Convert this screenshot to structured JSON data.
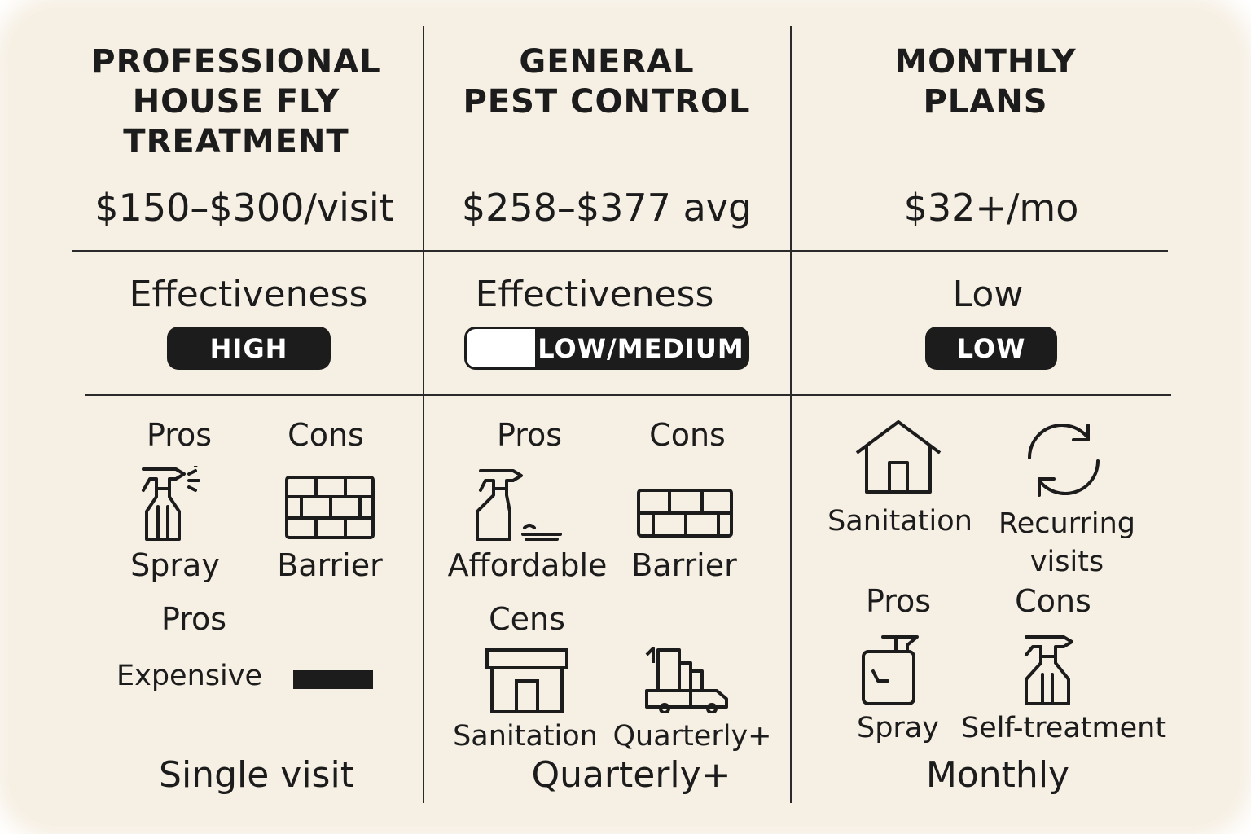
{
  "columns": [
    {
      "heading_lines": [
        "PROFESSIONAL",
        "HOUSE FLY",
        "TREATMENT"
      ],
      "price": "$150–$300/visit",
      "effectiveness_label": "Effectiveness",
      "effectiveness_badge": "HIGH",
      "pros_label": "Pros",
      "cons_label": "Cons",
      "pro_item": "Spray",
      "con_item": "Barrier",
      "pros_label_2": "Pros",
      "extra_item": "Expensive",
      "frequency": "Single visit"
    },
    {
      "heading_lines": [
        "GENERAL",
        "PEST CONTROL"
      ],
      "price": "$258–$377 avg",
      "effectiveness_label": "Effectiveness",
      "effectiveness_badge": "LOW/MEDIUM",
      "pros_label": "Pros",
      "cons_label": "Cons",
      "pro_item": "Affordable",
      "con_item": "Barrier",
      "cons_label_2": "Cens",
      "item_3": "Sanitation",
      "item_4": "Quarterly+",
      "frequency": "Quarterly+"
    },
    {
      "heading_lines": [
        "MONTHLY",
        "PLANS"
      ],
      "price": "$32+/mo",
      "effectiveness_label": "Low",
      "effectiveness_badge": "LOW",
      "item_1": "Sanitation",
      "item_2_lines": [
        "Recurring",
        "visits"
      ],
      "pros_label": "Pros",
      "cons_label": "Cons",
      "pro_item": "Spray",
      "con_item": "Self-treatment",
      "frequency": "Monthly"
    }
  ],
  "icons": [
    "spray-bottle-icon",
    "brick-wall-icon",
    "house-icon",
    "refresh-cycle-icon",
    "storefront-icon",
    "delivery-truck-icon",
    "dash-bar-icon"
  ]
}
